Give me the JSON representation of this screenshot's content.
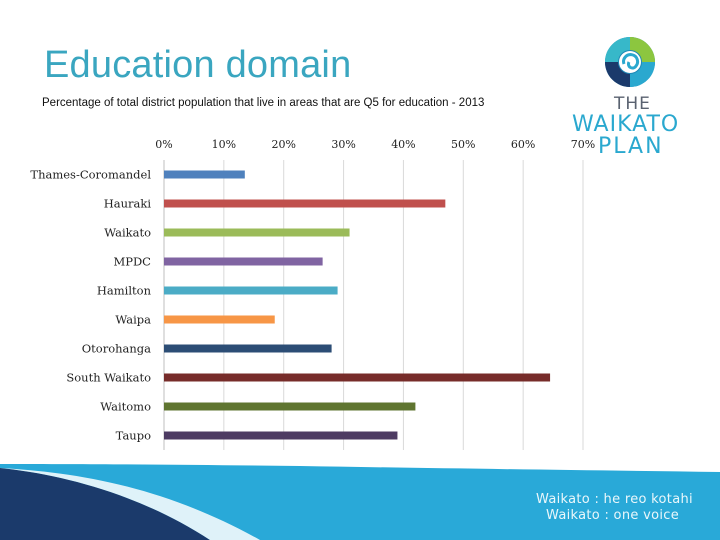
{
  "slide": {
    "title": "Education domain",
    "subtitle": "Percentage of total district population that live in areas that are Q5 for education - 2013"
  },
  "logo": {
    "the": "THE",
    "name": "WAIKATO",
    "plan": "PLAN"
  },
  "footer": {
    "line1": "Waikato : he reo kotahi",
    "line2": "Waikato : one voice"
  },
  "colors": {
    "title": "#3aa6c0",
    "footer_dark": "#1b3a6b",
    "footer_light": "#29a9d8"
  },
  "chart_data": {
    "type": "bar",
    "orientation": "horizontal",
    "categories": [
      "Thames-Coromandel",
      "Hauraki",
      "Waikato",
      "MPDC",
      "Hamilton",
      "Waipa",
      "Otorohanga",
      "South Waikato",
      "Waitomo",
      "Taupo"
    ],
    "values": [
      13.5,
      47,
      31,
      26.5,
      29,
      18.5,
      28,
      64.5,
      42,
      39
    ],
    "colors": [
      "#4f81bd",
      "#c0504d",
      "#9bbb59",
      "#8064a2",
      "#4bacc6",
      "#f79646",
      "#2c4d75",
      "#772c2a",
      "#5f7530",
      "#4d3b62"
    ],
    "xlim": [
      0,
      70
    ],
    "xticks": [
      "0%",
      "10%",
      "20%",
      "30%",
      "40%",
      "50%",
      "60%",
      "70%"
    ],
    "grid": true,
    "legend": "none"
  }
}
